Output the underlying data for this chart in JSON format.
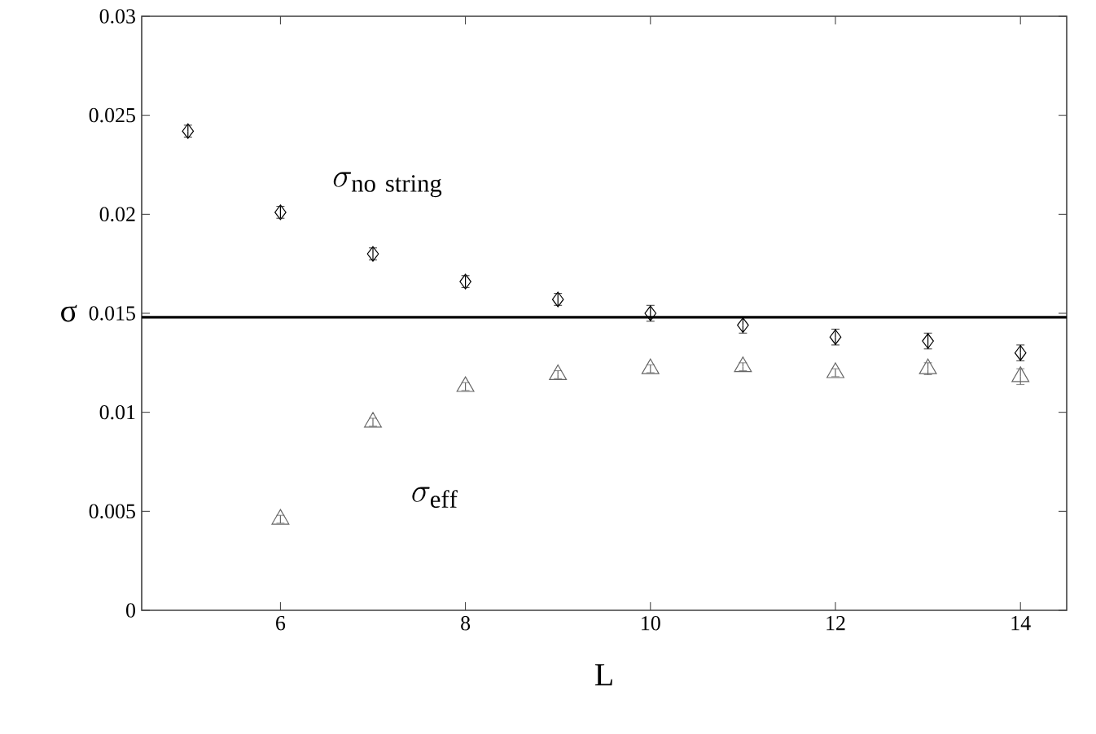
{
  "chart_data": {
    "type": "scatter",
    "xlabel": "L",
    "ylabel": "σ",
    "xlim": [
      4.5,
      14.5
    ],
    "xticks": [
      6,
      8,
      10,
      12,
      14
    ],
    "ylim": [
      0,
      0.03
    ],
    "yticks": [
      0,
      0.005,
      0.01,
      0.015,
      0.02,
      0.025,
      0.03
    ],
    "series": [
      {
        "color": "#000000",
        "marker": "diamond",
        "x": [
          5,
          6,
          7,
          8,
          9,
          10,
          11,
          12,
          13,
          14
        ],
        "values": [
          0.0242,
          0.0201,
          0.018,
          0.0166,
          0.0157,
          0.015,
          0.0144,
          0.0138,
          0.0136,
          0.013
        ],
        "errors": [
          0.0003,
          0.0003,
          0.0003,
          0.0003,
          0.0003,
          0.0004,
          0.0004,
          0.0004,
          0.0004,
          0.0004
        ]
      },
      {
        "color": "#666666",
        "marker": "triangle",
        "x": [
          6,
          7,
          8,
          9,
          10,
          11,
          12,
          13,
          14
        ],
        "values": [
          0.0046,
          0.0095,
          0.0113,
          0.0119,
          0.0122,
          0.0123,
          0.012,
          0.0122,
          0.0118
        ],
        "errors": [
          0.0002,
          0.0002,
          0.0002,
          0.0002,
          0.0002,
          0.0002,
          0.0002,
          0.0003,
          0.0004
        ]
      }
    ],
    "ref_lines": [
      {
        "axis": "y",
        "value": 0.0148,
        "color": "#000000"
      }
    ],
    "annotations": [
      "\\sigma_{\\mathrm{no\\ string}}",
      "\\sigma_{\\mathrm{eff}}"
    ]
  }
}
